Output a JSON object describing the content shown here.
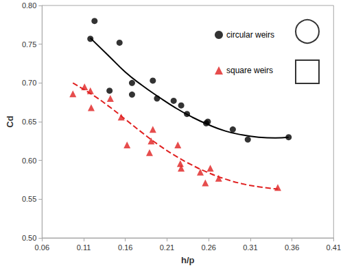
{
  "chart_data": {
    "type": "scatter",
    "x_label": "h/p",
    "y_label": "Cd",
    "xlim": [
      0.06,
      0.41
    ],
    "xticks": [
      0.06,
      0.11,
      0.16,
      0.21,
      0.26,
      0.31,
      0.36,
      0.41
    ],
    "ylim": [
      0.5,
      0.8
    ],
    "yticks": [
      {
        "value": 0.5,
        "label": "0.50"
      },
      {
        "value": 0.55,
        "label": "0.55"
      },
      {
        "value": 0.6,
        "label": "0.60"
      },
      {
        "value": 0.65,
        "label": "0.65"
      },
      {
        "value": 0.7,
        "label": "0.70"
      },
      {
        "value": 0.75,
        "label": "0.75"
      },
      {
        "value": 0.8,
        "label": "0.80"
      }
    ],
    "grid": false,
    "legend": "upper right",
    "series": [
      {
        "name": "circular weirs",
        "type": "scatter",
        "marker": "circle",
        "color": "#000000",
        "x": [
          0.118,
          0.123,
          0.141,
          0.153,
          0.168,
          0.168,
          0.193,
          0.198,
          0.218,
          0.227,
          0.234,
          0.257,
          0.259,
          0.289,
          0.307,
          0.356
        ],
        "values": [
          0.757,
          0.78,
          0.69,
          0.752,
          0.7,
          0.685,
          0.703,
          0.68,
          0.677,
          0.671,
          0.66,
          0.648,
          0.65,
          0.64,
          0.627,
          0.63
        ]
      },
      {
        "type": "line",
        "line_style": "solid",
        "color": "#000000",
        "x": [
          0.118,
          0.14,
          0.16,
          0.18,
          0.2,
          0.22,
          0.24,
          0.26,
          0.28,
          0.3,
          0.32,
          0.34,
          0.356
        ],
        "values": [
          0.758,
          0.735,
          0.714,
          0.697,
          0.682,
          0.668,
          0.656,
          0.646,
          0.638,
          0.633,
          0.63,
          0.629,
          0.63
        ]
      },
      {
        "name": "square weirs",
        "type": "scatter",
        "marker": "triangle",
        "color": "#e02020",
        "x": [
          0.097,
          0.111,
          0.118,
          0.119,
          0.142,
          0.155,
          0.162,
          0.189,
          0.191,
          0.193,
          0.223,
          0.226,
          0.227,
          0.25,
          0.256,
          0.262,
          0.272,
          0.343
        ],
        "values": [
          0.686,
          0.695,
          0.69,
          0.668,
          0.68,
          0.656,
          0.62,
          0.61,
          0.625,
          0.64,
          0.62,
          0.596,
          0.59,
          0.585,
          0.571,
          0.59,
          0.577,
          0.565
        ]
      },
      {
        "type": "line",
        "line_style": "dashed",
        "color": "#e02020",
        "x": [
          0.097,
          0.12,
          0.14,
          0.16,
          0.18,
          0.2,
          0.22,
          0.24,
          0.26,
          0.28,
          0.3,
          0.32,
          0.343
        ],
        "values": [
          0.7,
          0.685,
          0.67,
          0.653,
          0.636,
          0.62,
          0.606,
          0.594,
          0.584,
          0.576,
          0.57,
          0.566,
          0.563
        ]
      }
    ]
  }
}
